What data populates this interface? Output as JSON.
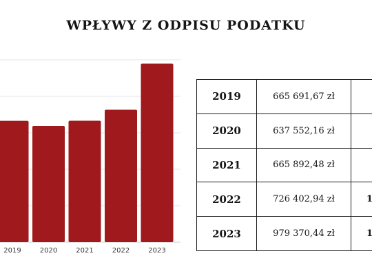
{
  "title": "WPŁYWY Z ODPISU PODATKU",
  "chart_data": {
    "type": "bar",
    "title": "WPŁYWY Z ODPISU PODATKU",
    "categories": [
      "2019",
      "2020",
      "2021",
      "2022",
      "2023"
    ],
    "values": [
      665691.67,
      637552.16,
      665892.48,
      726402.94,
      979370.44
    ],
    "ylim": [
      0,
      1000000
    ],
    "grid": true,
    "bar_color": "#a0191c"
  },
  "table": {
    "rows": [
      {
        "year": "2019",
        "amount": "665 691,67 zł",
        "extra": ""
      },
      {
        "year": "2020",
        "amount": "637 552,16 zł",
        "extra": ""
      },
      {
        "year": "2021",
        "amount": "665 892,48 zł",
        "extra": ""
      },
      {
        "year": "2022",
        "amount": "726 402,94 zł",
        "extra": "1"
      },
      {
        "year": "2023",
        "amount": "979 370,44 zł",
        "extra": "1"
      }
    ]
  }
}
